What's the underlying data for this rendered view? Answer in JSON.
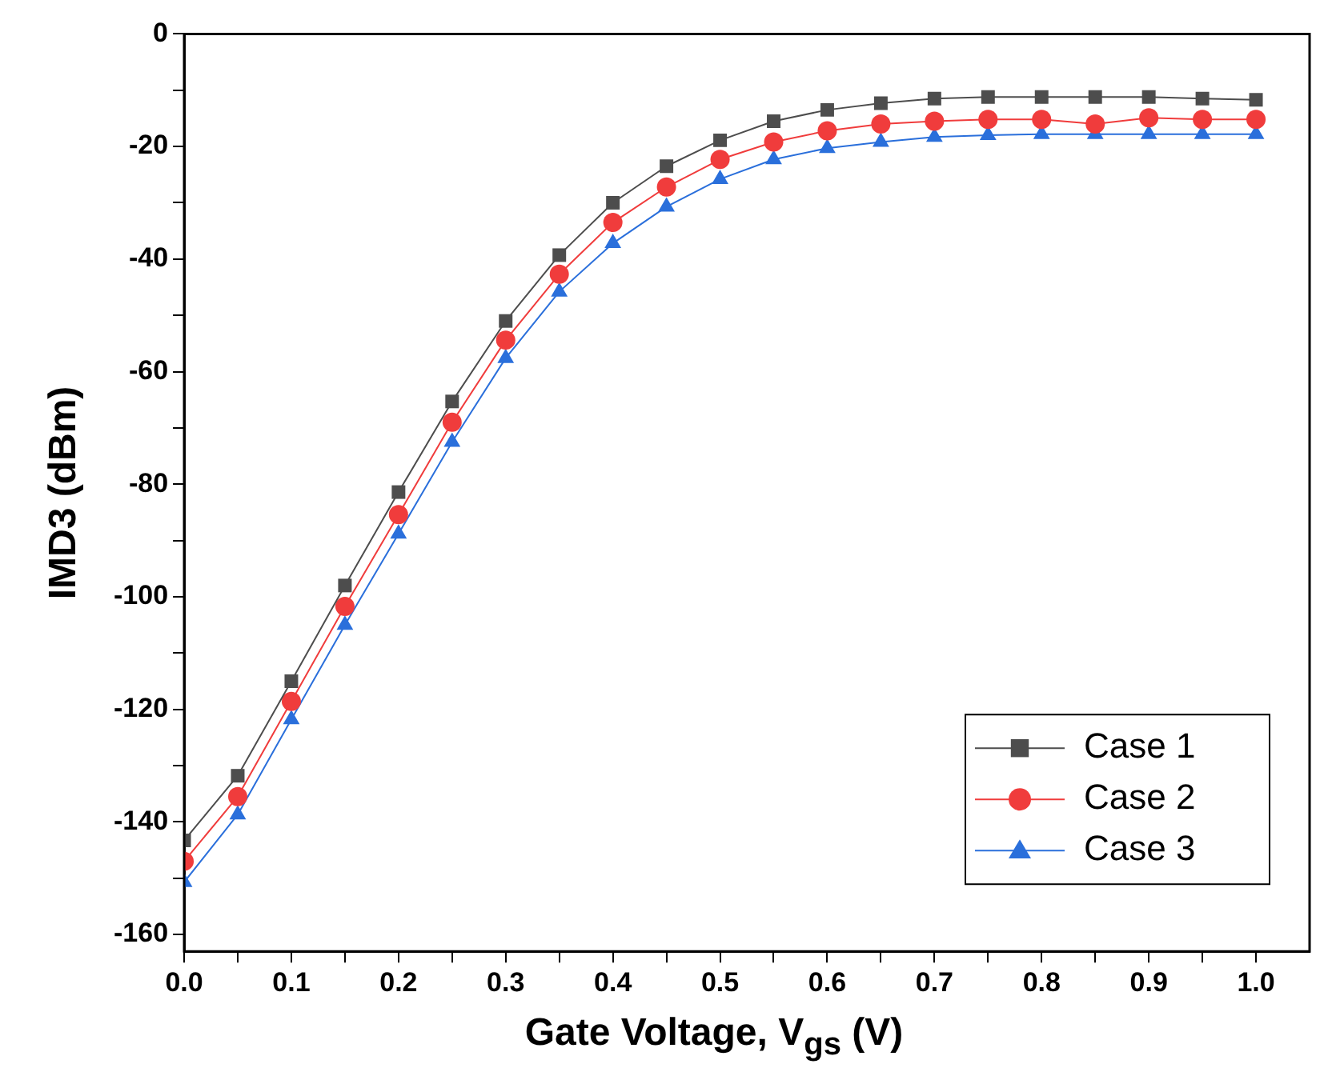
{
  "chart_data": {
    "type": "line",
    "xlabel": "Gate Voltage, V$_{gs}$ (V)",
    "ylabel": "IMD3 (dBm)",
    "x": [
      0,
      0.05,
      0.1,
      0.15,
      0.2,
      0.25,
      0.3,
      0.35,
      0.4,
      0.45,
      0.5,
      0.55,
      0.6,
      0.65,
      0.7,
      0.75,
      0.8,
      0.85,
      0.9,
      0.95,
      1.0
    ],
    "series": [
      {
        "name": "Case 1",
        "color": "#4d4d4d",
        "marker": "square",
        "values": [
          -143.3,
          -131.8,
          -115,
          -98,
          -81.4,
          -65.3,
          -51,
          -39.3,
          -30,
          -23.5,
          -18.9,
          -15.5,
          -13.5,
          -12.3,
          -11.5,
          -11.2,
          -11.2,
          -11.2,
          -11.2,
          -11.5,
          -11.7
        ]
      },
      {
        "name": "Case 2",
        "color": "#f03c3c",
        "marker": "circle",
        "values": [
          -147,
          -135.5,
          -118.6,
          -101.7,
          -85.4,
          -69,
          -54.4,
          -42.7,
          -33.5,
          -27.2,
          -22.3,
          -19.2,
          -17.2,
          -16,
          -15.5,
          -15.2,
          -15.2,
          -16,
          -14.9,
          -15.2,
          -15.2
        ]
      },
      {
        "name": "Case 3",
        "color": "#2a6fdb",
        "marker": "triangle",
        "values": [
          -150.7,
          -138.7,
          -121.8,
          -105,
          -88.8,
          -72.5,
          -57.6,
          -45.8,
          -37.2,
          -30.7,
          -25.8,
          -22.3,
          -20.3,
          -19.2,
          -18.3,
          -18,
          -17.8,
          -17.8,
          -17.8,
          -17.8,
          -17.8
        ]
      }
    ],
    "xlim": [
      0,
      1.05
    ],
    "ylim": [
      -163,
      0
    ],
    "xticks": [
      {
        "value": 0,
        "label": "0.0"
      },
      {
        "value": 0.05,
        "label": null
      },
      {
        "value": 0.1,
        "label": "0.1"
      },
      {
        "value": 0.15,
        "label": null
      },
      {
        "value": 0.2,
        "label": "0.2"
      },
      {
        "value": 0.25,
        "label": null
      },
      {
        "value": 0.3,
        "label": "0.3"
      },
      {
        "value": 0.35,
        "label": null
      },
      {
        "value": 0.4,
        "label": "0.4"
      },
      {
        "value": 0.45,
        "label": null
      },
      {
        "value": 0.5,
        "label": "0.5"
      },
      {
        "value": 0.55,
        "label": null
      },
      {
        "value": 0.6,
        "label": "0.6"
      },
      {
        "value": 0.65,
        "label": null
      },
      {
        "value": 0.7,
        "label": "0.7"
      },
      {
        "value": 0.75,
        "label": null
      },
      {
        "value": 0.8,
        "label": "0.8"
      },
      {
        "value": 0.85,
        "label": null
      },
      {
        "value": 0.9,
        "label": "0.9"
      },
      {
        "value": 0.95,
        "label": null
      },
      {
        "value": 1.0,
        "label": "1.0"
      }
    ],
    "yticks": [
      -160,
      {
        "value": -150,
        "label": null
      },
      -140,
      {
        "value": -130,
        "label": null
      },
      -120,
      {
        "value": -110,
        "label": null
      },
      -100,
      {
        "value": -90,
        "label": null
      },
      -80,
      {
        "value": -70,
        "label": null
      },
      -60,
      {
        "value": -50,
        "label": null
      },
      -40,
      {
        "value": -30,
        "label": null
      },
      -20,
      {
        "value": -10,
        "label": null
      },
      0
    ],
    "grid": false,
    "legend": "bottom right"
  }
}
